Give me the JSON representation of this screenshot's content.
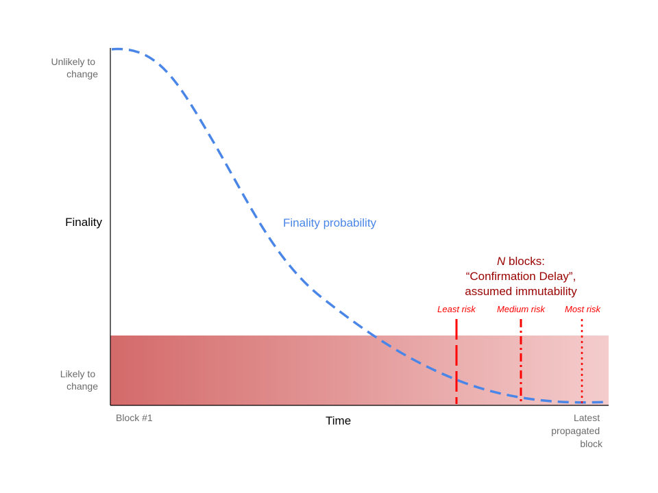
{
  "y_axis": {
    "title": "Finality",
    "top_label_line1": "Unlikely to",
    "top_label_line2": "change",
    "bottom_label_line1": "Likely to",
    "bottom_label_line2": "change"
  },
  "x_axis": {
    "title": "Time",
    "start_label": "Block #1",
    "end_label_line1": "Latest",
    "end_label_line2": "propagated",
    "end_label_line3": "block"
  },
  "curve": {
    "label": "Finality probability",
    "color": "#4a86e8"
  },
  "confirmation_delay": {
    "line1_italic": "N",
    "line1_rest": " blocks:",
    "line2": "“Confirmation Delay”,",
    "line3": "assumed immutability",
    "color": "#990000"
  },
  "risk_markers": [
    {
      "label": "Least risk",
      "style": "long-dash"
    },
    {
      "label": "Medium risk",
      "style": "dash-dot"
    },
    {
      "label": "Most risk",
      "style": "dotted"
    }
  ],
  "colors": {
    "band_start": "#d46a6a",
    "band_end": "#f4cccc",
    "risk": "#ff0000",
    "axis": "#000000"
  }
}
